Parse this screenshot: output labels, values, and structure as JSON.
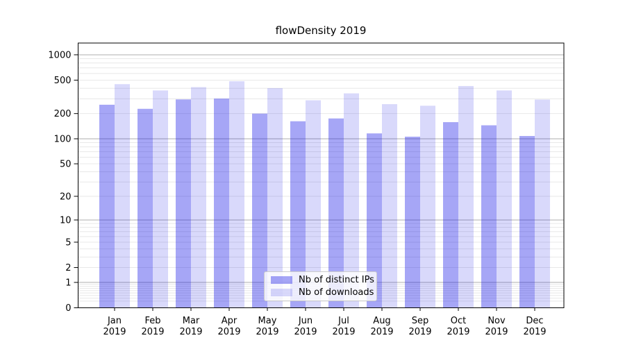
{
  "title": "flowDensity 2019",
  "chart_data": {
    "type": "bar",
    "title": "flowDensity 2019",
    "categories": [
      "Jan 2019",
      "Feb 2019",
      "Mar 2019",
      "Apr 2019",
      "May 2019",
      "Jun 2019",
      "Jul 2019",
      "Aug 2019",
      "Sep 2019",
      "Oct 2019",
      "Nov 2019",
      "Dec 2019"
    ],
    "series": [
      {
        "name": "Nb of distinct IPs",
        "color": "#0000e6",
        "opacity": 0.35,
        "values": [
          255,
          228,
          295,
          302,
          200,
          162,
          175,
          116,
          106,
          158,
          145,
          108
        ]
      },
      {
        "name": "Nb of downloads",
        "color": "#0000e6",
        "opacity": 0.15,
        "values": [
          448,
          377,
          413,
          485,
          402,
          288,
          348,
          259,
          248,
          426,
          377,
          294
        ]
      }
    ],
    "yscale": "log1p",
    "y_ticks": [
      0,
      1,
      2,
      5,
      10,
      20,
      50,
      100,
      200,
      500,
      1000
    ],
    "ylim": [
      0,
      1370
    ],
    "grid": {
      "major_values": [
        1,
        10,
        100,
        1000
      ],
      "major_color": "#aeaeae",
      "minor_color": "#e8e8e8",
      "orientation": "horizontal"
    },
    "legend_position": "lower center",
    "axis_color": "#000000"
  }
}
